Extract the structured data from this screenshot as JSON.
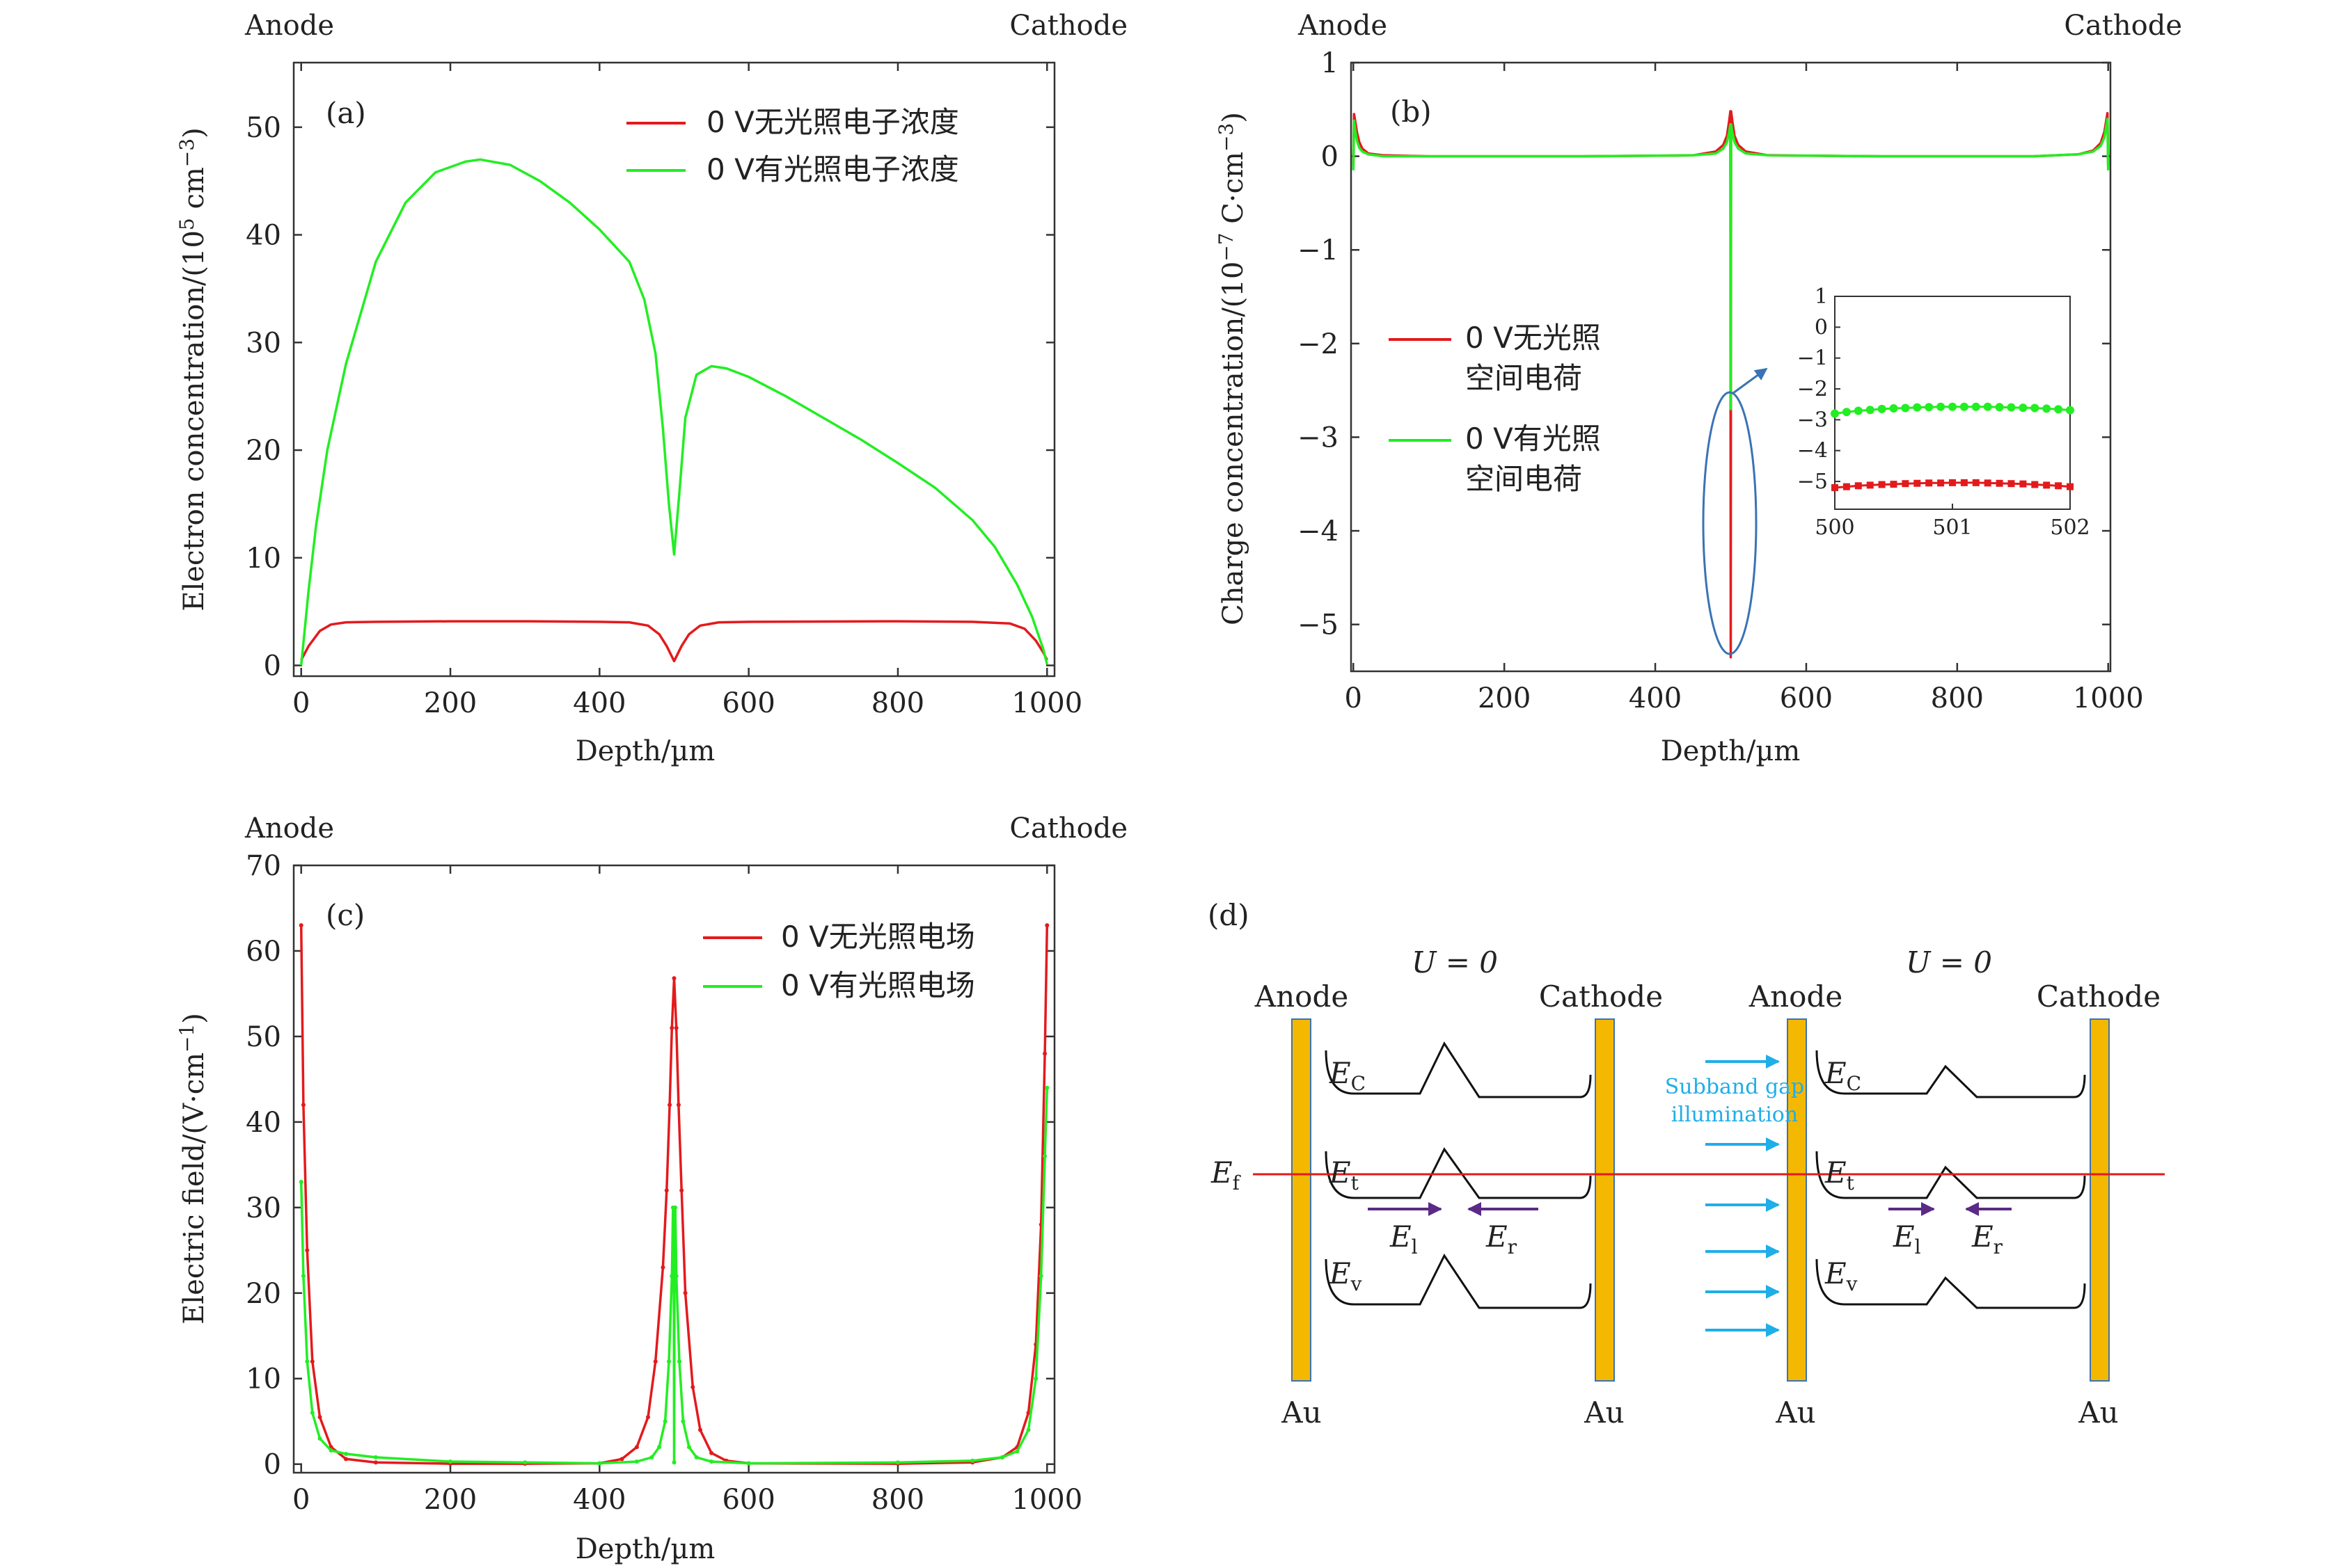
{
  "panels": {
    "a": {
      "label": "(a)",
      "anode": "Anode",
      "cathode": "Cathode",
      "xlabel": "Depth/µm",
      "ylabel_main": "Electron concentration/(10",
      "ylabel_exp1": "5",
      "ylabel_mid": " cm",
      "ylabel_exp2": "−3",
      "ylabel_end": ")",
      "xticks": [
        "0",
        "200",
        "400",
        "600",
        "800",
        "1000"
      ],
      "yticks": [
        "0",
        "10",
        "20",
        "30",
        "40",
        "50"
      ],
      "legend": [
        "0 V无光照电子浓度",
        "0 V有光照电子浓度"
      ]
    },
    "b": {
      "label": "(b)",
      "anode": "Anode",
      "cathode": "Cathode",
      "xlabel": "Depth/µm",
      "ylabel_main": "Charge concentration/(10",
      "ylabel_exp1": "−7",
      "ylabel_mid": " C·cm",
      "ylabel_exp2": "−3",
      "ylabel_end": ")",
      "xticks": [
        "0",
        "200",
        "400",
        "600",
        "800",
        "1000"
      ],
      "yticks": [
        "−5",
        "−4",
        "−3",
        "−2",
        "−1",
        "0",
        "1"
      ],
      "legend": [
        [
          "0 V无光照",
          "空间电荷"
        ],
        [
          "0 V有光照",
          "空间电荷"
        ]
      ],
      "inset": {
        "xticks": [
          "500",
          "501",
          "502"
        ],
        "yticks": [
          "1",
          "0",
          "−1",
          "−2",
          "−3",
          "−4",
          "−5"
        ]
      }
    },
    "c": {
      "label": "(c)",
      "anode": "Anode",
      "cathode": "Cathode",
      "xlabel": "Depth/µm",
      "ylabel_main": "Electric field/(V·cm",
      "ylabel_exp1": "",
      "ylabel_mid": "",
      "ylabel_exp2": "−1",
      "ylabel_end": ")",
      "xticks": [
        "0",
        "200",
        "400",
        "600",
        "800",
        "1000"
      ],
      "yticks": [
        "0",
        "10",
        "20",
        "30",
        "40",
        "50",
        "60",
        "70"
      ],
      "legend": [
        "0 V无光照电场",
        "0 V有光照电场"
      ]
    },
    "d": {
      "label": "(d)",
      "u_left": "U = 0",
      "u_right": "U = 0",
      "anode": "Anode",
      "cathode": "Cathode",
      "au": "Au",
      "ef": "E",
      "ef_sub": "f",
      "ec": "E",
      "ec_sub": "C",
      "et": "E",
      "et_sub": "t",
      "ev": "E",
      "ev_sub": "v",
      "el": "E",
      "el_sub": "l",
      "er": "E",
      "er_sub": "r",
      "illum_1": "Subband gap",
      "illum_2": "illumination"
    }
  },
  "colors": {
    "dark": "#e31a1c",
    "light": "#22ee22",
    "gold": "#f5b800",
    "blue": "#1faee8",
    "purple": "#5b2a86",
    "ellipse": "#3a73b4"
  },
  "chart_data": [
    {
      "type": "line",
      "title": "(a)",
      "xlabel": "Depth/µm",
      "ylabel": "Electron concentration/(10^5 cm^-3)",
      "xlim": [
        -10,
        1010
      ],
      "ylim": [
        -1,
        56
      ],
      "series": [
        {
          "name": "0 V无光照电子浓度",
          "x": [
            0,
            10,
            25,
            40,
            60,
            100,
            200,
            300,
            400,
            440,
            465,
            480,
            490,
            500,
            510,
            520,
            535,
            560,
            600,
            800,
            900,
            950,
            970,
            985,
            995,
            1000
          ],
          "y": [
            0.5,
            1.8,
            3.2,
            3.8,
            4.0,
            4.05,
            4.1,
            4.1,
            4.05,
            4.0,
            3.7,
            2.9,
            1.8,
            0.4,
            1.8,
            2.9,
            3.7,
            4.0,
            4.05,
            4.1,
            4.05,
            3.9,
            3.4,
            2.3,
            1.2,
            0.5
          ]
        },
        {
          "name": "0 V有光照电子浓度",
          "x": [
            0,
            10,
            20,
            35,
            60,
            100,
            140,
            180,
            220,
            240,
            280,
            320,
            360,
            400,
            440,
            460,
            475,
            485,
            493,
            500,
            507,
            515,
            530,
            550,
            570,
            600,
            650,
            700,
            750,
            800,
            850,
            900,
            930,
            960,
            980,
            995,
            1000
          ],
          "y": [
            0,
            7,
            13,
            20,
            28,
            37.5,
            43,
            45.8,
            46.8,
            47.0,
            46.5,
            45.0,
            43.0,
            40.5,
            37.5,
            34.0,
            29.0,
            22.0,
            15.0,
            10.3,
            16.0,
            23.0,
            27.0,
            27.8,
            27.6,
            26.8,
            25.0,
            23.0,
            21.0,
            18.8,
            16.5,
            13.5,
            11.0,
            7.5,
            4.5,
            1.5,
            0.1
          ]
        }
      ]
    },
    {
      "type": "line",
      "title": "(b)",
      "xlabel": "Depth/µm",
      "ylabel": "Charge concentration/(10^-7 C·cm^-3)",
      "xlim": [
        -3,
        1003
      ],
      "ylim": [
        -5.5,
        1.0
      ],
      "series": [
        {
          "name": "0 V无光照空间电荷",
          "x": [
            0,
            1,
            3,
            5,
            8,
            12,
            20,
            40,
            100,
            300,
            450,
            480,
            490,
            495,
            498,
            499.5,
            500,
            500.5,
            502,
            505,
            510,
            520,
            550,
            700,
            900,
            960,
            980,
            990,
            995,
            997,
            999,
            1000
          ],
          "y": [
            -0.1,
            0.45,
            0.35,
            0.25,
            0.15,
            0.08,
            0.03,
            0.01,
            0.0,
            0.0,
            0.01,
            0.05,
            0.12,
            0.22,
            0.38,
            0.48,
            -5.35,
            0.48,
            0.38,
            0.22,
            0.12,
            0.05,
            0.01,
            0.0,
            0.0,
            0.02,
            0.06,
            0.14,
            0.26,
            0.36,
            0.46,
            -0.1
          ]
        },
        {
          "name": "0 V有光照空间电荷",
          "x": [
            0,
            1,
            3,
            5,
            8,
            12,
            20,
            40,
            100,
            300,
            450,
            480,
            490,
            495,
            498,
            499.5,
            500,
            500.5,
            502,
            505,
            510,
            520,
            550,
            700,
            900,
            960,
            980,
            990,
            995,
            997,
            999,
            1000
          ],
          "y": [
            -0.15,
            0.38,
            0.25,
            0.16,
            0.09,
            0.05,
            0.02,
            0.0,
            0.0,
            0.0,
            0.01,
            0.03,
            0.08,
            0.15,
            0.26,
            0.34,
            -2.7,
            0.34,
            0.26,
            0.15,
            0.08,
            0.03,
            0.01,
            0.0,
            0.0,
            0.02,
            0.05,
            0.11,
            0.2,
            0.3,
            0.4,
            -0.15
          ]
        }
      ],
      "inset": {
        "xlim": [
          500,
          502
        ],
        "ylim": [
          -5.9,
          1.0
        ],
        "series": [
          {
            "name": "0 V无光照空间电荷",
            "x": [
              500.0,
              500.1,
              500.2,
              500.3,
              500.4,
              500.5,
              500.6,
              500.7,
              500.8,
              500.9,
              501.0,
              501.1,
              501.2,
              501.3,
              501.4,
              501.5,
              501.6,
              501.7,
              501.8,
              501.9,
              502.0
            ],
            "y": [
              -5.2,
              -5.17,
              -5.14,
              -5.12,
              -5.1,
              -5.09,
              -5.07,
              -5.06,
              -5.05,
              -5.05,
              -5.04,
              -5.04,
              -5.04,
              -5.05,
              -5.06,
              -5.07,
              -5.08,
              -5.1,
              -5.12,
              -5.14,
              -5.17
            ]
          },
          {
            "name": "0 V有光照空间电荷",
            "x": [
              500.0,
              500.1,
              500.2,
              500.3,
              500.4,
              500.5,
              500.6,
              500.7,
              500.8,
              500.9,
              501.0,
              501.1,
              501.2,
              501.3,
              501.4,
              501.5,
              501.6,
              501.7,
              501.8,
              501.9,
              502.0
            ],
            "y": [
              -2.8,
              -2.75,
              -2.71,
              -2.68,
              -2.65,
              -2.63,
              -2.62,
              -2.6,
              -2.59,
              -2.58,
              -2.58,
              -2.58,
              -2.58,
              -2.58,
              -2.59,
              -2.6,
              -2.61,
              -2.62,
              -2.64,
              -2.66,
              -2.69
            ]
          }
        ]
      }
    },
    {
      "type": "line",
      "title": "(c)",
      "xlabel": "Depth/µm",
      "ylabel": "Electric field/(V·cm^-1)",
      "xlim": [
        -10,
        1010
      ],
      "ylim": [
        -1,
        70
      ],
      "series": [
        {
          "name": "0 V无光照电场",
          "x": [
            0,
            3,
            8,
            15,
            25,
            40,
            60,
            100,
            200,
            300,
            400,
            430,
            450,
            465,
            475,
            485,
            490,
            494,
            497,
            500,
            503,
            506,
            510,
            515,
            525,
            535,
            550,
            570,
            600,
            800,
            900,
            940,
            960,
            975,
            985,
            992,
            997,
            1000
          ],
          "y": [
            63,
            42,
            25,
            12,
            5.5,
            2.0,
            0.6,
            0.2,
            0.05,
            0.05,
            0.1,
            0.6,
            2.0,
            5.5,
            12,
            23,
            32,
            42,
            51,
            56.8,
            51,
            42,
            32,
            20,
            9,
            4,
            1.3,
            0.4,
            0.1,
            0.05,
            0.2,
            0.8,
            2.0,
            6,
            14,
            28,
            48,
            63
          ]
        },
        {
          "name": "0 V有光照电场",
          "x": [
            0,
            3,
            8,
            15,
            25,
            40,
            60,
            100,
            200,
            300,
            400,
            450,
            470,
            480,
            488,
            493,
            497,
            498.5,
            499.5,
            500,
            500.5,
            501.5,
            503,
            507,
            512,
            520,
            530,
            550,
            600,
            800,
            900,
            940,
            960,
            975,
            985,
            992,
            997,
            1000
          ],
          "y": [
            33,
            22,
            12,
            6,
            3,
            1.6,
            1.2,
            0.8,
            0.3,
            0.2,
            0.1,
            0.3,
            0.8,
            2,
            5,
            12,
            22,
            30,
            25,
            0.2,
            25,
            30,
            22,
            12,
            5,
            2,
            0.8,
            0.3,
            0.1,
            0.2,
            0.4,
            0.8,
            1.5,
            4,
            10,
            22,
            36,
            44
          ]
        }
      ]
    }
  ]
}
